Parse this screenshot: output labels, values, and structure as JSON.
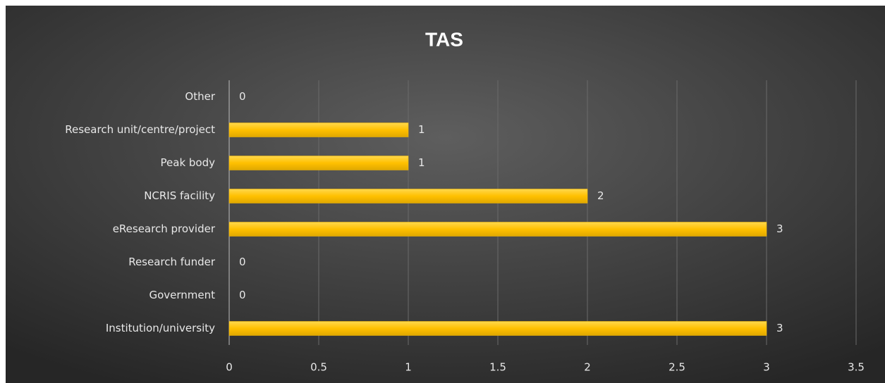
{
  "chart_data": {
    "type": "bar",
    "orientation": "horizontal",
    "title": "TAS",
    "categories": [
      "Other",
      "Research unit/centre/project",
      "Peak body",
      "NCRIS facility",
      "eResearch provider",
      "Research funder",
      "Government",
      "Institution/university"
    ],
    "values": [
      0,
      1,
      1,
      2,
      3,
      0,
      0,
      3
    ],
    "color": "#ffc000",
    "xlim": [
      0,
      3.5
    ],
    "xticks": [
      0,
      0.5,
      1,
      1.5,
      2,
      2.5,
      3,
      3.5
    ],
    "grid": true
  }
}
